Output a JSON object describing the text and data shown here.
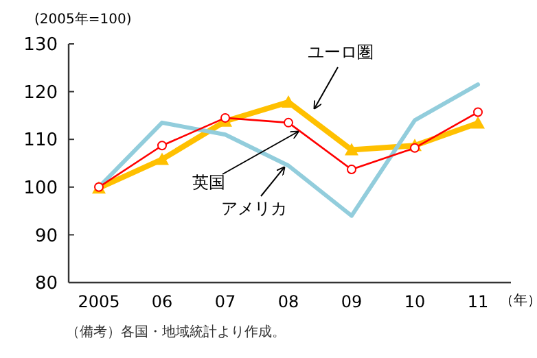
{
  "chart_data": {
    "type": "line",
    "ylabel": "(2005年=100)",
    "xlabel": "（年）",
    "categories": [
      "2005",
      "06",
      "07",
      "08",
      "09",
      "10",
      "11"
    ],
    "ylim": [
      80,
      130
    ],
    "yticks": [
      80,
      90,
      100,
      110,
      120,
      130
    ],
    "grid": false,
    "series": [
      {
        "name": "アメリカ",
        "color": "#92cddc",
        "marker": "none",
        "values": [
          100,
          113.5,
          111,
          104.5,
          94,
          114,
          121.5
        ]
      },
      {
        "name": "英国",
        "color": "#ff0000",
        "marker": "circle",
        "values": [
          100,
          108.7,
          114.5,
          113.5,
          103.7,
          108.2,
          115.7
        ]
      },
      {
        "name": "ユーロ圏",
        "color": "#ffc000",
        "marker": "triangle",
        "values": [
          99.8,
          105.8,
          113.8,
          117.8,
          107.8,
          108.7,
          113.4
        ]
      }
    ],
    "annotations": [
      "（備考）各国・地域統計より作成。"
    ]
  }
}
